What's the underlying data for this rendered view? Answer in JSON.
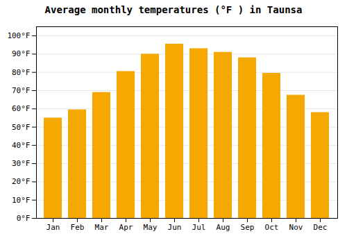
{
  "chart_data": {
    "type": "bar",
    "title": "Average monthly temperatures (°F ) in Taunsa",
    "categories": [
      "Jan",
      "Feb",
      "Mar",
      "Apr",
      "May",
      "Jun",
      "Jul",
      "Aug",
      "Sep",
      "Oct",
      "Nov",
      "Dec"
    ],
    "values": [
      55,
      59.5,
      69,
      80.5,
      90,
      95.5,
      93,
      91,
      88,
      79.5,
      67.5,
      58
    ],
    "color": "#F5A800",
    "ylim": [
      0,
      105
    ],
    "yticks": [
      {
        "value": 0,
        "label": "0°F"
      },
      {
        "value": 10,
        "label": "10°F"
      },
      {
        "value": 20,
        "label": "20°F"
      },
      {
        "value": 30,
        "label": "30°F"
      },
      {
        "value": 40,
        "label": "40°F"
      },
      {
        "value": 50,
        "label": "50°F"
      },
      {
        "value": 60,
        "label": "60°F"
      },
      {
        "value": 70,
        "label": "70°F"
      },
      {
        "value": 80,
        "label": "80°F"
      },
      {
        "value": 90,
        "label": "90°F"
      },
      {
        "value": 100,
        "label": "100°F"
      }
    ],
    "grid": true
  }
}
